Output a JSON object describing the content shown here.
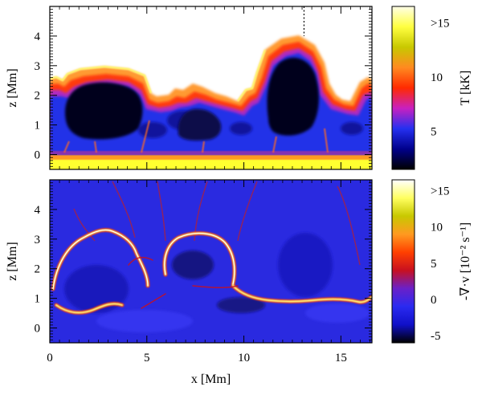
{
  "chart_data": [
    {
      "type": "heatmap",
      "panel": "top",
      "quantity": "temperature",
      "ylabel": "z [Mm]",
      "xlim": [
        0,
        16.6
      ],
      "ylim": [
        -0.5,
        5.0
      ],
      "x_ticks": [
        0,
        5,
        10,
        15
      ],
      "y_ticks": [
        0,
        1,
        2,
        3,
        4
      ],
      "y_tick_labels": [
        "0",
        "1",
        "2",
        "3",
        "4"
      ],
      "colorbar": {
        "label": "T [kK]",
        "range": [
          1.5,
          16.5
        ],
        "ticks": [
          5,
          10,
          15
        ],
        "tick_labels": [
          "5",
          "10",
          ">15"
        ],
        "colors": [
          "#000000",
          "#00008b",
          "#2530f0",
          "#c820c0",
          "#ff2a00",
          "#ff8a20",
          "#c8c800",
          "#ffff40",
          "#ffffe8"
        ]
      },
      "marker_line_x": 13.1,
      "features": {
        "cool_pockets": [
          {
            "x_center": 2.8,
            "width": 3.6,
            "top_z": 2.4
          },
          {
            "x_center": 7.6,
            "width": 3.2,
            "top_z": 1.6
          },
          {
            "x_center": 13.0,
            "width": 3.6,
            "top_z": 3.6
          }
        ],
        "hot_layer_z": [
          -0.5,
          -0.1
        ],
        "background_above_atmosphere": "white (no data)"
      }
    },
    {
      "type": "heatmap",
      "panel": "bottom",
      "quantity": "velocity divergence",
      "xlabel": "x [Mm]",
      "ylabel": "z [Mm]",
      "xlim": [
        0,
        16.6
      ],
      "ylim": [
        -0.5,
        5.0
      ],
      "x_ticks": [
        0,
        5,
        10,
        15
      ],
      "x_tick_labels": [
        "0",
        "5",
        "10",
        "15"
      ],
      "y_ticks": [
        0,
        1,
        2,
        3,
        4
      ],
      "y_tick_labels": [
        "0",
        "1",
        "2",
        "3",
        "4"
      ],
      "colorbar": {
        "label": "-∇·v [10⁻² s⁻¹]",
        "range": [
          -6,
          16.5
        ],
        "ticks": [
          -5,
          0,
          5,
          10,
          15
        ],
        "tick_labels": [
          "-5",
          "0",
          "5",
          "10",
          ">15"
        ],
        "colors": [
          "#000000",
          "#1010c8",
          "#2a2af0",
          "#6a20c8",
          "#c81020",
          "#ff4000",
          "#ff9a20",
          "#c8c800",
          "#ffff60",
          "#ffffff"
        ]
      },
      "features": {
        "shock_fronts": [
          {
            "x_center": 2.8,
            "width": 4.2,
            "top_z": 3.1
          },
          {
            "x_center": 8.2,
            "width": 3.4,
            "top_z": 2.7
          },
          {
            "x_center": 13.0,
            "width": 3.8,
            "top_z": 1.4
          }
        ],
        "background_value": 0
      }
    }
  ]
}
